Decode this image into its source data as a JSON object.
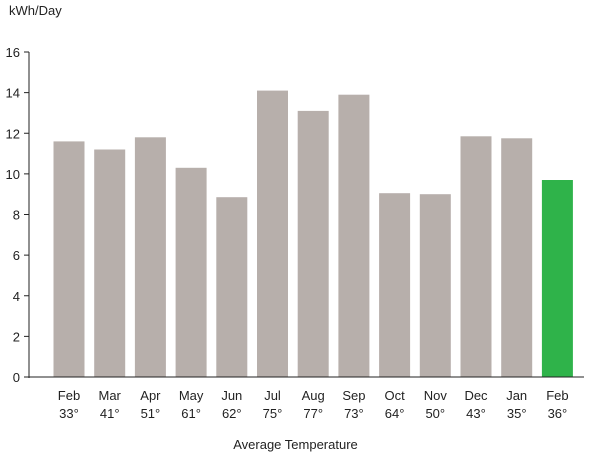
{
  "chart_data": {
    "type": "bar",
    "ylabel": "kWh/Day",
    "xlabel": "Average Temperature",
    "ylim": [
      0,
      16
    ],
    "yticks": [
      0,
      2,
      4,
      6,
      8,
      10,
      12,
      14,
      16
    ],
    "grid": false,
    "categories": [
      "Feb",
      "Mar",
      "Apr",
      "May",
      "Jun",
      "Jul",
      "Aug",
      "Sep",
      "Oct",
      "Nov",
      "Dec",
      "Jan",
      "Feb"
    ],
    "temperatures": [
      "33°",
      "41°",
      "51°",
      "61°",
      "62°",
      "75°",
      "77°",
      "73°",
      "64°",
      "50°",
      "43°",
      "35°",
      "36°"
    ],
    "values": [
      11.6,
      11.2,
      11.8,
      10.3,
      8.85,
      14.1,
      13.1,
      13.9,
      9.05,
      9.0,
      11.85,
      11.75,
      9.7
    ],
    "colors": {
      "bar": "#b7afab",
      "highlight": "#2fb34a",
      "axis": "#222222"
    },
    "highlight_index": 12
  }
}
